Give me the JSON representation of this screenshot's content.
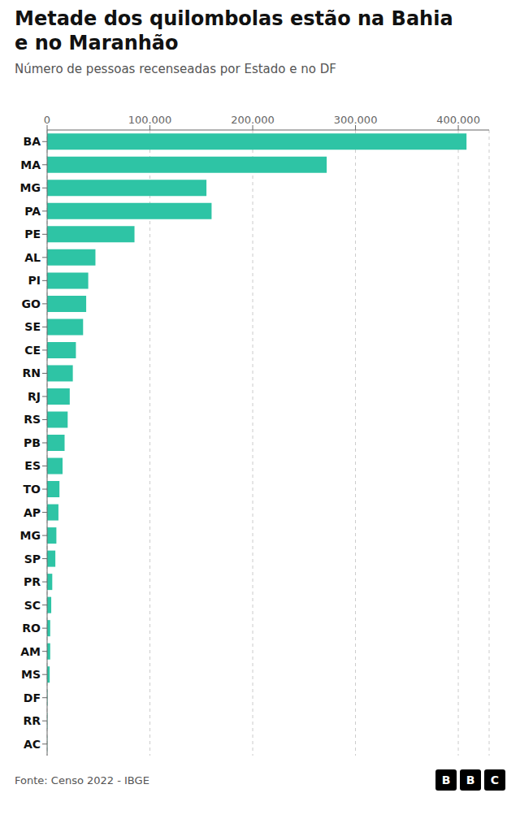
{
  "chart_data": {
    "type": "bar",
    "orientation": "horizontal",
    "title": "Metade dos quilombolas estão na Bahia\ne no Maranhão",
    "subtitle": "Número de pessoas recenseadas por Estado e no DF",
    "annotations": [
      "Fonte: Censo 2022 - IBGE",
      "BBC"
    ],
    "categories": [
      "BA",
      "MA",
      "MG",
      "PA",
      "PE",
      "AL",
      "PI",
      "GO",
      "SE",
      "CE",
      "RN",
      "RJ",
      "RS",
      "PB",
      "ES",
      "TO",
      "AP",
      "MG",
      "SP",
      "PR",
      "SC",
      "RO",
      "AM",
      "MS",
      "DF",
      "RR",
      "AC"
    ],
    "values": [
      408000,
      272000,
      155000,
      160000,
      85000,
      47000,
      40000,
      38000,
      35000,
      28000,
      25000,
      22000,
      20000,
      17000,
      15000,
      12000,
      11000,
      9000,
      8000,
      5000,
      4000,
      3000,
      3000,
      2500,
      400,
      300,
      200
    ],
    "color": "#2ec4a5",
    "xlim": [
      0,
      430000
    ],
    "xticks": [
      0,
      {
        "value": 100000,
        "label": "100.000"
      },
      {
        "value": 200000,
        "label": "200.000"
      },
      {
        "value": 300000,
        "label": "300.000"
      },
      {
        "value": 400000,
        "label": "400.000"
      }
    ],
    "grid": true
  }
}
